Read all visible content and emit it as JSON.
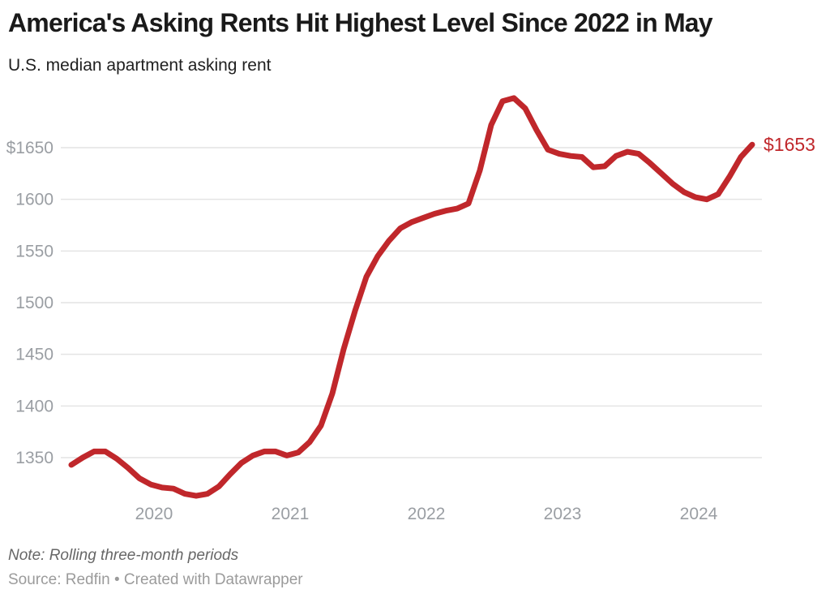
{
  "header": {
    "title": "America's Asking Rents Hit Highest Level Since 2022 in May",
    "subtitle": "U.S. median apartment asking rent"
  },
  "footer": {
    "note": "Note: Rolling three-month periods",
    "source": "Source: Redfin • Created with Datawrapper"
  },
  "colors": {
    "line": "#c0272b",
    "end_label": "#c0272b",
    "grid": "#e4e4e4",
    "axis_text": "#9a9ea3",
    "title": "#1a1a1a",
    "subtitle": "#1f1f1f",
    "note": "#676767",
    "source": "#9b9b9b"
  },
  "chart_data": {
    "type": "line",
    "title": "America's Asking Rents Hit Highest Level Since 2022 in May",
    "subtitle": "U.S. median apartment asking rent",
    "unit": "USD per month",
    "x_start": "2019-05",
    "x_end": "2024-05",
    "interval": "monthly",
    "x_tick_labels": [
      "2020",
      "2021",
      "2022",
      "2023",
      "2024"
    ],
    "y_ticks": [
      1650,
      1600,
      1550,
      1500,
      1450,
      1400,
      1350
    ],
    "y_tick_labels": [
      "$1650",
      "1600",
      "1550",
      "1500",
      "1450",
      "1400",
      "1350"
    ],
    "ylim": [
      1300,
      1705
    ],
    "grid": "horizontal-only",
    "legend": "none",
    "end_label": "$1653",
    "last_value": 1653,
    "series": [
      {
        "name": "U.S. median apartment asking rent",
        "values": [
          1343,
          1350,
          1356,
          1356,
          1349,
          1340,
          1330,
          1324,
          1321,
          1320,
          1315,
          1313,
          1315,
          1322,
          1334,
          1345,
          1352,
          1356,
          1356,
          1352,
          1355,
          1365,
          1381,
          1412,
          1455,
          1492,
          1525,
          1545,
          1560,
          1572,
          1578,
          1582,
          1586,
          1589,
          1591,
          1596,
          1628,
          1672,
          1695,
          1698,
          1688,
          1667,
          1648,
          1644,
          1642,
          1641,
          1631,
          1632,
          1642,
          1646,
          1644,
          1635,
          1625,
          1615,
          1607,
          1602,
          1600,
          1605,
          1622,
          1641,
          1653
        ]
      }
    ]
  }
}
